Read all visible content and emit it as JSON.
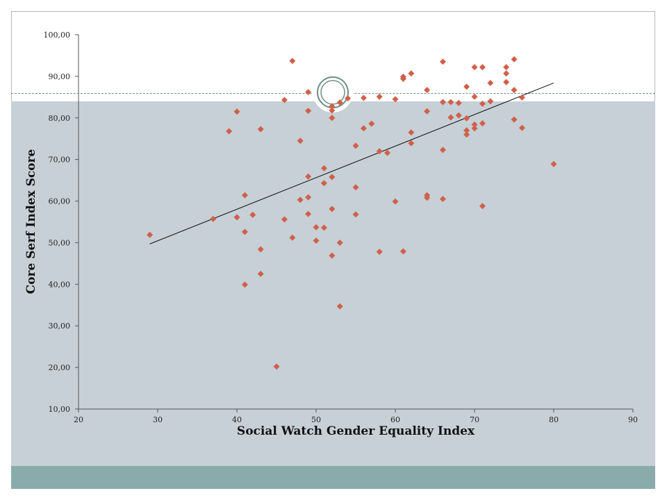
{
  "chart_data": {
    "type": "scatter",
    "title": "",
    "xlabel": "Social Watch Gender Equality Index",
    "ylabel": "Core Serf Index Score",
    "xlim": [
      20,
      90
    ],
    "ylim": [
      10,
      100
    ],
    "x_ticks": [
      "20",
      "30",
      "40",
      "50",
      "60",
      "70",
      "80",
      "90"
    ],
    "y_ticks": [
      "10,00",
      "20,00",
      "30,00",
      "40,00",
      "50,00",
      "60,00",
      "70,00",
      "80,00",
      "90,00",
      "100,00"
    ],
    "grid": false,
    "legend": "none",
    "marker_color": "#d0604a",
    "trendline": {
      "x": [
        29,
        80
      ],
      "y": [
        49.7,
        88.4
      ],
      "color": "#111111"
    },
    "points": [
      [
        29,
        51.9
      ],
      [
        37,
        55.7
      ],
      [
        39,
        76.8
      ],
      [
        40,
        56.1
      ],
      [
        40,
        81.5
      ],
      [
        41,
        61.4
      ],
      [
        41,
        52.6
      ],
      [
        41,
        39.9
      ],
      [
        42,
        56.7
      ],
      [
        43,
        77.3
      ],
      [
        43,
        48.4
      ],
      [
        43,
        42.5
      ],
      [
        45,
        20.2
      ],
      [
        46,
        84.3
      ],
      [
        46,
        55.6
      ],
      [
        47,
        93.7
      ],
      [
        47,
        51.2
      ],
      [
        48,
        74.5
      ],
      [
        48,
        60.3
      ],
      [
        49,
        86.2
      ],
      [
        49,
        81.7
      ],
      [
        49,
        65.9
      ],
      [
        49,
        60.9
      ],
      [
        49,
        56.9
      ],
      [
        50,
        53.7
      ],
      [
        50,
        50.5
      ],
      [
        51,
        67.9
      ],
      [
        51,
        64.3
      ],
      [
        51,
        53.6
      ],
      [
        52,
        82.8
      ],
      [
        52,
        81.8
      ],
      [
        52,
        80.0
      ],
      [
        52,
        65.8
      ],
      [
        52,
        58.1
      ],
      [
        52,
        46.9
      ],
      [
        53,
        83.7
      ],
      [
        53,
        50.0
      ],
      [
        53,
        34.7
      ],
      [
        54,
        84.7
      ],
      [
        55,
        73.3
      ],
      [
        55,
        63.3
      ],
      [
        55,
        56.8
      ],
      [
        56,
        84.8
      ],
      [
        56,
        77.5
      ],
      [
        57,
        78.6
      ],
      [
        58,
        85.1
      ],
      [
        58,
        72.0
      ],
      [
        58,
        47.8
      ],
      [
        59,
        71.6
      ],
      [
        60,
        84.5
      ],
      [
        60,
        59.9
      ],
      [
        61,
        89.9
      ],
      [
        61,
        89.4
      ],
      [
        61,
        47.9
      ],
      [
        62,
        90.7
      ],
      [
        62,
        76.5
      ],
      [
        62,
        73.9
      ],
      [
        64,
        86.7
      ],
      [
        64,
        81.6
      ],
      [
        64,
        61.4
      ],
      [
        64,
        60.8
      ],
      [
        66,
        93.5
      ],
      [
        66,
        83.8
      ],
      [
        66,
        72.3
      ],
      [
        66,
        60.5
      ],
      [
        67,
        83.8
      ],
      [
        67,
        80.1
      ],
      [
        68,
        83.6
      ],
      [
        68,
        80.6
      ],
      [
        69,
        87.5
      ],
      [
        69,
        79.9
      ],
      [
        69,
        77.0
      ],
      [
        69,
        76.0
      ],
      [
        70,
        92.2
      ],
      [
        70,
        85.1
      ],
      [
        70,
        78.4
      ],
      [
        70,
        77.5
      ],
      [
        71,
        92.2
      ],
      [
        71,
        83.4
      ],
      [
        71,
        78.7
      ],
      [
        71,
        58.8
      ],
      [
        72,
        88.4
      ],
      [
        72,
        84.0
      ],
      [
        74,
        92.2
      ],
      [
        74,
        90.7
      ],
      [
        74,
        88.6
      ],
      [
        75,
        94.1
      ],
      [
        75,
        86.7
      ],
      [
        75,
        79.6
      ],
      [
        76,
        84.9
      ],
      [
        76,
        77.6
      ],
      [
        80,
        68.9
      ]
    ]
  },
  "theme": {
    "band_color": "#c6d0d6",
    "footer_color": "#8aabab",
    "ornament_color": "#6e8f87"
  }
}
